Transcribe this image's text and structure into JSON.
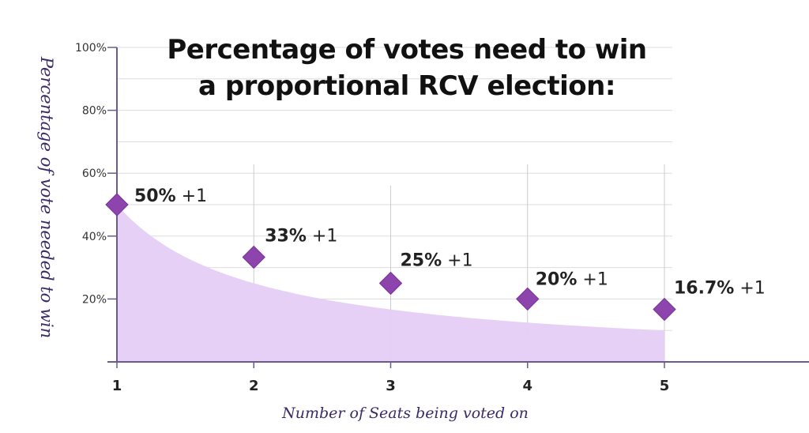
{
  "chart_data": {
    "type": "area",
    "title_lines": [
      "Percentage of votes need to win",
      "a proportional RCV election:"
    ],
    "xlabel": "Number of Seats being voted on",
    "ylabel": "Percentage of vote needed to win",
    "x": [
      1,
      2,
      3,
      4,
      5
    ],
    "y": [
      50,
      33.3,
      25,
      20,
      16.7
    ],
    "labels": [
      {
        "pct": "50%",
        "suffix": " +1"
      },
      {
        "pct": "33%",
        "suffix": " +1"
      },
      {
        "pct": "25%",
        "suffix": " +1"
      },
      {
        "pct": "20%",
        "suffix": " +1"
      },
      {
        "pct": "16.7%",
        "suffix": " +1"
      }
    ],
    "y_ticks": [
      20,
      40,
      60,
      80,
      100
    ],
    "y_tick_labels": [
      "20%",
      "40%",
      "60%",
      "80%",
      "100%"
    ],
    "x_tick_labels": [
      "1",
      "2",
      "3",
      "4",
      "5"
    ],
    "ylim": [
      0,
      100
    ],
    "xlim": [
      1,
      5
    ],
    "grid": true,
    "colors": {
      "fill": "#e6cdf6",
      "marker": "#8e44ad",
      "axis": "#6b5a8e",
      "grid": "#dddddd"
    }
  }
}
